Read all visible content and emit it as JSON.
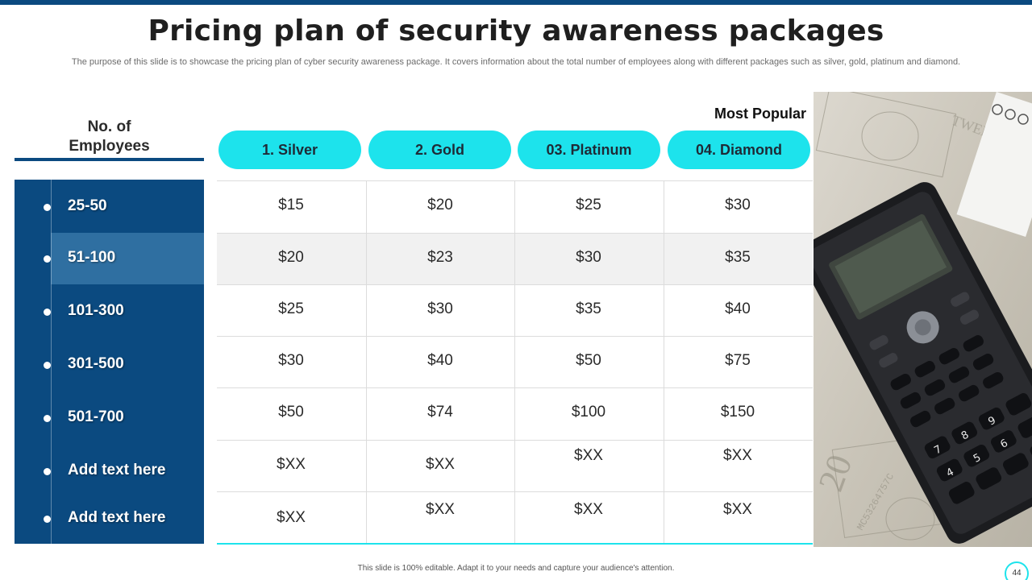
{
  "slide": {
    "title": "Pricing plan of security awareness packages",
    "subtitle": "The purpose of this slide is to showcase the pricing plan of cyber  security awareness package. It covers information about the total number of employees along with different packages such as silver, gold, platinum and diamond.",
    "footer": "This slide is 100% editable.  Adapt it to your needs and capture your audience's attention.",
    "page_number": "44"
  },
  "employees": {
    "header_line1": "No. of",
    "header_line2": "Employees",
    "rows": [
      "25-50",
      "51-100",
      "101-300",
      "301-500",
      "501-700",
      "Add text here",
      "Add text here"
    ],
    "highlighted_index": 1
  },
  "most_popular_label": "Most Popular",
  "plans": [
    "1. Silver",
    "2. Gold",
    "03. Platinum",
    "04. Diamond"
  ],
  "prices": [
    [
      "$15",
      "$20",
      "$25",
      "$30"
    ],
    [
      "$20",
      "$23",
      "$30",
      "$35"
    ],
    [
      "$25",
      "$30",
      "$35",
      "$40"
    ],
    [
      "$30",
      "$40",
      "$50",
      "$75"
    ],
    [
      "$50",
      "$74",
      "$100",
      "$150"
    ],
    [
      "$XX",
      "$XX",
      "$XX",
      "$XX"
    ],
    [
      "$XX",
      "$XX",
      "$XX",
      "$XX"
    ]
  ],
  "colors": {
    "primary": "#0b4a80",
    "highlight": "#2f6fa1",
    "accent": "#1de3ec",
    "shaded_row": "#f1f1f1"
  },
  "image": {
    "icon": "calculator-with-dollar-bills-photo"
  }
}
